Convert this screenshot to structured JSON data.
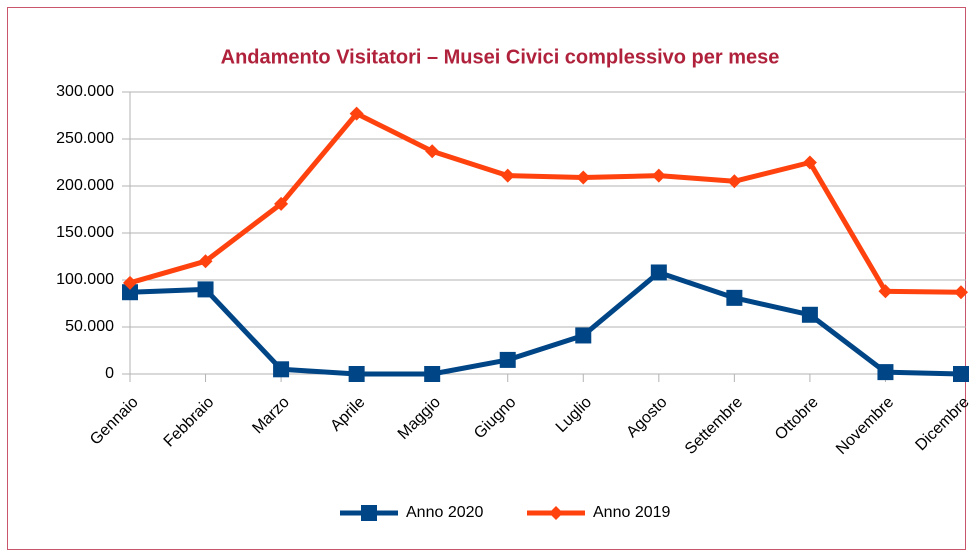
{
  "chart_data": {
    "type": "line",
    "title": "Andamento Visitatori – Musei Civici complessivo per mese",
    "categories": [
      "Gennaio",
      "Febbraio",
      "Marzo",
      "Aprile",
      "Maggio",
      "Giugno",
      "Luglio",
      "Agosto",
      "Settembre",
      "Ottobre",
      "Novembre",
      "Dicembre"
    ],
    "series": [
      {
        "name": "Anno 2020",
        "color": "#004586",
        "marker": "square",
        "values": [
          87000,
          90000,
          5000,
          0,
          0,
          15000,
          41000,
          108000,
          81000,
          63000,
          2000,
          0
        ]
      },
      {
        "name": "Anno 2019",
        "color": "#ff420e",
        "marker": "diamond",
        "values": [
          97000,
          120000,
          181000,
          277000,
          237000,
          211000,
          209000,
          211000,
          205000,
          225000,
          88000,
          87000
        ]
      }
    ],
    "ylim": [
      0,
      300000
    ],
    "yticks": [
      0,
      {
        "value": 50000,
        "label": "50.000"
      },
      {
        "value": 100000,
        "label": "100.000"
      },
      {
        "value": 150000,
        "label": "150.000"
      },
      {
        "value": 200000,
        "label": "200.000"
      },
      {
        "value": 250000,
        "label": "250.000"
      },
      {
        "value": 300000,
        "label": "300.000"
      }
    ],
    "grid": true,
    "legend": "bottom"
  }
}
